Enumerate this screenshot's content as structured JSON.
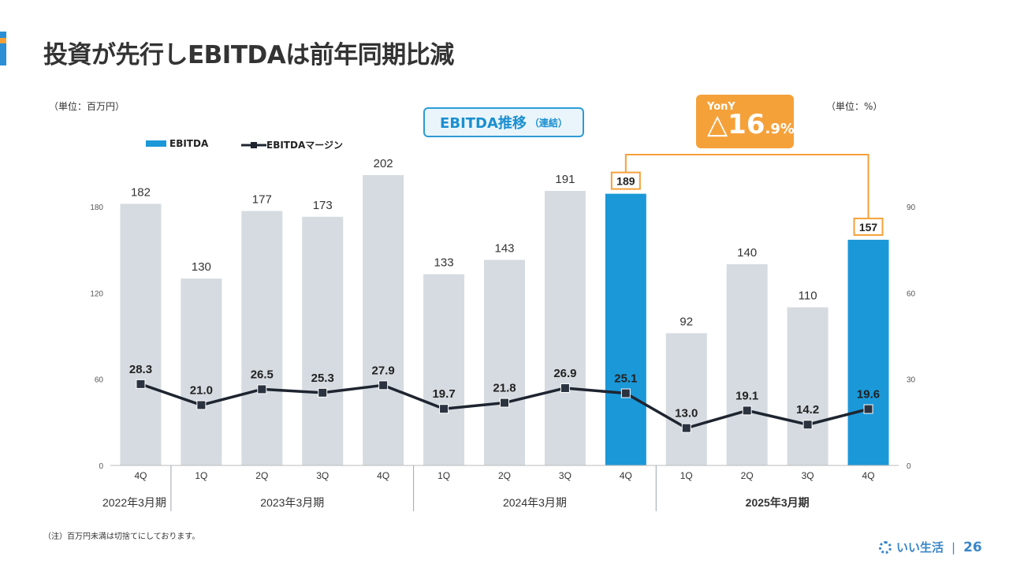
{
  "page": {
    "title": "投資が先行しEBITDAは前年同期比減",
    "unit_left": "（単位：百万円）",
    "unit_right": "（単位：%）",
    "chart_box_title": "EBITDA推移",
    "chart_box_subtitle": "（連結）",
    "note": "（注）百万円未満は切捨てにしております。",
    "brand": "いい生活",
    "page_number": "26",
    "accent_colors": [
      "#2a8fd4",
      "#f5a13a",
      "#2a8fd4"
    ]
  },
  "legend": {
    "bar_label": "EBITDA",
    "line_label": "EBITDAマージン"
  },
  "yony": {
    "label": "YonY",
    "prefix": "△",
    "value": "16",
    "decimal": ".9%"
  },
  "chart_data": {
    "type": "bar",
    "categories": [
      "4Q",
      "1Q",
      "2Q",
      "3Q",
      "4Q",
      "1Q",
      "2Q",
      "3Q",
      "4Q",
      "1Q",
      "2Q",
      "3Q",
      "4Q"
    ],
    "period_groups": [
      {
        "label": "2022年3月期",
        "start": 0,
        "end": 0,
        "bold": false
      },
      {
        "label": "2023年3月期",
        "start": 1,
        "end": 4,
        "bold": false
      },
      {
        "label": "2024年3月期",
        "start": 5,
        "end": 8,
        "bold": false
      },
      {
        "label": "2025年3月期",
        "start": 9,
        "end": 12,
        "bold": true
      }
    ],
    "series": [
      {
        "name": "EBITDA",
        "type": "bar",
        "values": [
          182,
          130,
          177,
          173,
          202,
          133,
          143,
          191,
          189,
          92,
          140,
          110,
          157
        ],
        "labels": [
          "182",
          "130",
          "177",
          "173",
          "202",
          "133",
          "143",
          "191",
          "189",
          "92",
          "140",
          "110",
          "157"
        ],
        "highlight": [
          8,
          12
        ],
        "color": "#d5dbe0",
        "highlight_color": "#1b98d8"
      },
      {
        "name": "EBITDAマージン",
        "type": "line",
        "axis": "right",
        "values": [
          28.3,
          21.0,
          26.5,
          25.3,
          27.9,
          19.7,
          21.8,
          26.9,
          25.1,
          13.0,
          19.1,
          14.2,
          19.6
        ],
        "labels": [
          "28.3",
          "21.0",
          "26.5",
          "25.3",
          "27.9",
          "19.7",
          "21.8",
          "26.9",
          "25.1",
          "13.0",
          "19.1",
          "14.2",
          "19.6"
        ],
        "color": "#1e2530"
      }
    ],
    "y_left": {
      "min": 0,
      "max": 180,
      "ticks": [
        "0",
        "60",
        "120",
        "180"
      ],
      "tick_values": [
        0,
        60,
        120,
        180
      ]
    },
    "y_right": {
      "min": 0,
      "max": 90,
      "ticks": [
        "0",
        "30",
        "60",
        "90"
      ],
      "tick_values": [
        0,
        30,
        60,
        90
      ]
    },
    "comparison_color": "#f5a13a"
  }
}
